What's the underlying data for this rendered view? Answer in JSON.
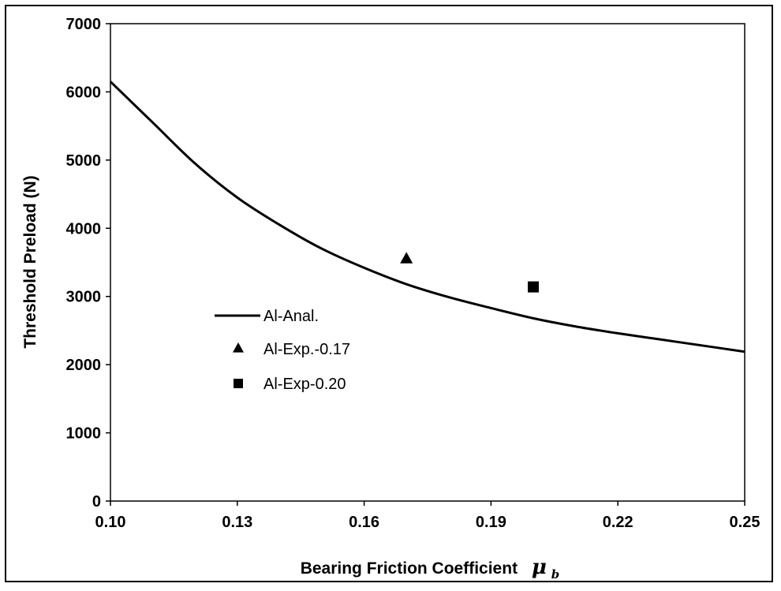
{
  "chart_data": {
    "type": "line",
    "xlabel": "Bearing Friction Coefficient",
    "xlabel_symbol": "μ",
    "xlabel_subscript": "b",
    "ylabel": "Threshold Preload (N)",
    "xlim": [
      0.1,
      0.25
    ],
    "ylim": [
      0,
      7000
    ],
    "x_ticks": [
      "0.10",
      "0.13",
      "0.16",
      "0.19",
      "0.22",
      "0.25"
    ],
    "y_ticks": [
      "0",
      "1000",
      "2000",
      "3000",
      "4000",
      "5000",
      "6000",
      "7000"
    ],
    "grid": false,
    "legend_position": "center-left",
    "series": [
      {
        "name": "Al-Anal.",
        "kind": "line",
        "color": "#000000",
        "x": [
          0.1,
          0.11,
          0.12,
          0.13,
          0.14,
          0.15,
          0.16,
          0.17,
          0.18,
          0.19,
          0.2,
          0.21,
          0.22,
          0.23,
          0.24,
          0.25
        ],
        "y": [
          6150,
          5550,
          4950,
          4450,
          4050,
          3700,
          3420,
          3180,
          2990,
          2830,
          2680,
          2560,
          2460,
          2370,
          2280,
          2190
        ]
      },
      {
        "name": "Al-Exp.-0.17",
        "kind": "marker",
        "marker": "triangle",
        "color": "#000000",
        "x": [
          0.17
        ],
        "y": [
          3560
        ]
      },
      {
        "name": "Al-Exp-0.20",
        "kind": "marker",
        "marker": "square",
        "color": "#000000",
        "x": [
          0.2
        ],
        "y": [
          3140
        ]
      }
    ]
  }
}
